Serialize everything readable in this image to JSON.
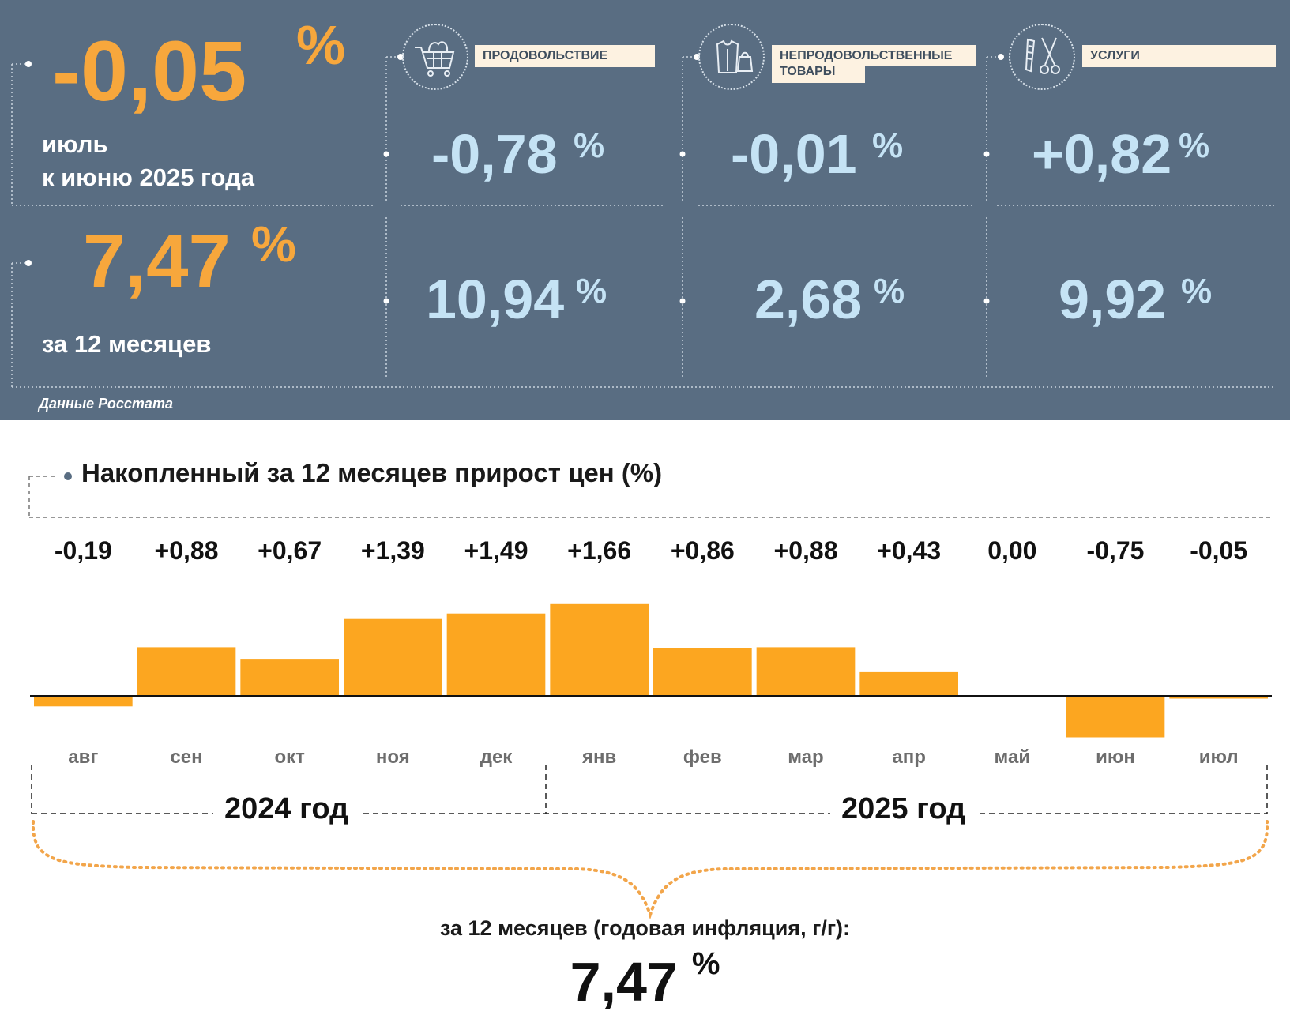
{
  "summary": {
    "monthly": {
      "value": "-0,05",
      "unit": "%",
      "line1": "июль",
      "line2": "к июню 2025 года"
    },
    "annual": {
      "value": "7,47",
      "unit": "%",
      "caption": "за 12 месяцев"
    },
    "source": "Данные Росстата",
    "categories": [
      {
        "label": "ПРОДОВОЛЬСТВИЕ",
        "icon": "shopping-cart-icon",
        "monthly": "-0,78",
        "annual": "10,94",
        "unit": "%"
      },
      {
        "label_line1": "НЕПРОДОВОЛЬСТВЕННЫЕ",
        "label_line2": "ТОВАРЫ",
        "icon": "clothing-bag-icon",
        "monthly": "-0,01",
        "annual": "2,68",
        "unit": "%"
      },
      {
        "label": "УСЛУГИ",
        "icon": "comb-scissors-icon",
        "monthly": "+0,82",
        "annual": "9,92",
        "unit": "%"
      }
    ]
  },
  "colors": {
    "panel": "#596d82",
    "accent_orange": "#f7a73c",
    "light_blue": "#c5e3f5",
    "bar": "#fca620",
    "label_bg": "#fdf2e1"
  },
  "chart_data": {
    "type": "bar",
    "title": "Накопленный за 12 месяцев прирост цен (%)",
    "categories": [
      "авг",
      "сен",
      "окт",
      "ноя",
      "дек",
      "янв",
      "фев",
      "мар",
      "апр",
      "май",
      "июн",
      "июл"
    ],
    "values": [
      -0.19,
      0.88,
      0.67,
      1.39,
      1.49,
      1.66,
      0.86,
      0.88,
      0.43,
      0.0,
      -0.75,
      -0.05
    ],
    "value_labels": [
      "-0,19",
      "+0,88",
      "+0,67",
      "+1,39",
      "+1,49",
      "+1,66",
      "+0,86",
      "+0,88",
      "+0,43",
      "0,00",
      "-0,75",
      "-0,05"
    ],
    "year_groups": [
      "2024 год",
      "2025 год"
    ],
    "grid": false,
    "legend": "none"
  },
  "annual_summary": {
    "caption": "за 12 месяцев (годовая инфляция, г/г):",
    "value": "7,47",
    "unit": "%"
  }
}
